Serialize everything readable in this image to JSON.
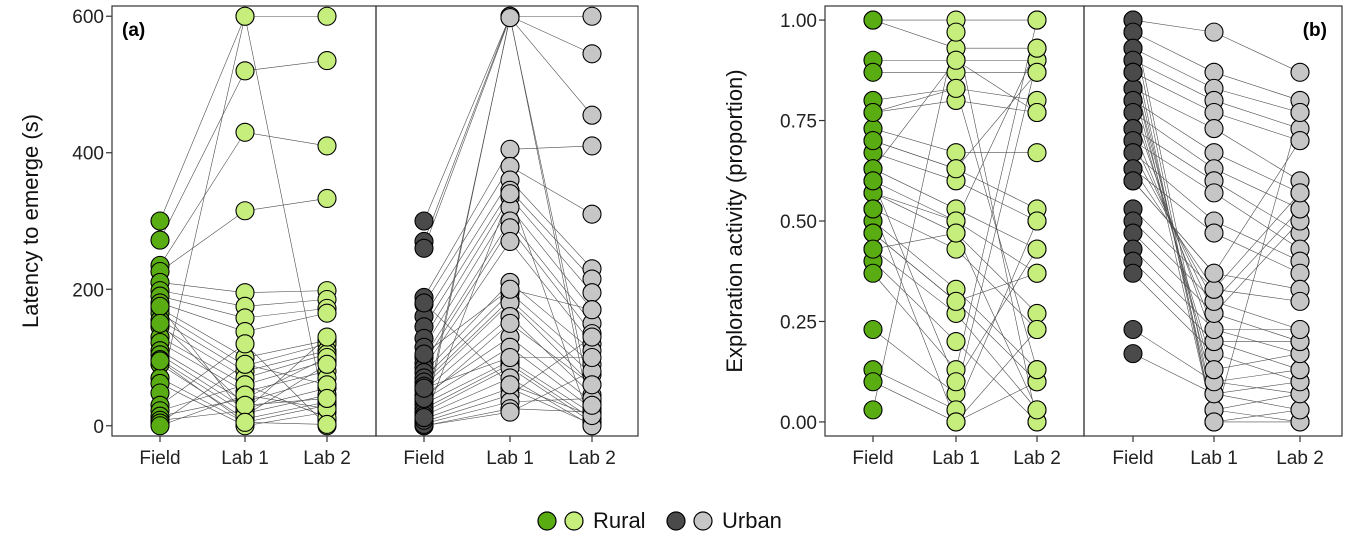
{
  "colors": {
    "rural_field": "#5aac13",
    "rural_lab": "#c6ee7c",
    "urban_field": "#4a4a4a",
    "urban_lab": "#c6c6c6",
    "marker_edge": "#000000",
    "connector_line": "#4d4d4d"
  },
  "legend": {
    "rural": "Rural",
    "urban": "Urban"
  },
  "chart_data": [
    {
      "type": "scatter",
      "panel_tag": "(a)",
      "ylabel": "Latency to emerge (s)",
      "ylim": [
        -15,
        615
      ],
      "y_ticks": [
        0,
        200,
        400,
        600
      ],
      "y_tick_labels": [
        "0",
        "200",
        "400",
        "600"
      ],
      "facets": [
        "Rural",
        "Urban"
      ],
      "categories": [
        "Field",
        "Lab 1",
        "Lab 2"
      ],
      "series": [
        {
          "name": "Rural",
          "field": [
            300,
            272,
            235,
            226,
            210,
            198,
            190,
            180,
            172,
            165,
            155,
            145,
            130,
            122,
            110,
            104,
            97,
            90,
            70,
            62,
            48,
            30,
            22,
            14,
            8,
            4,
            0,
            175,
            150,
            95
          ],
          "lab1": [
            600,
            520,
            430,
            315,
            195,
            175,
            158,
            138,
            100,
            88,
            80,
            70,
            60,
            50,
            35,
            25,
            18,
            10,
            5,
            0,
            600,
            120,
            60,
            40,
            22,
            90,
            45,
            15,
            30,
            5
          ],
          "lab2": [
            600,
            535,
            410,
            333,
            198,
            185,
            172,
            165,
            125,
            120,
            110,
            105,
            95,
            80,
            70,
            55,
            45,
            35,
            30,
            20,
            8,
            0,
            12,
            100,
            130,
            60,
            25,
            90,
            40,
            2
          ]
        },
        {
          "name": "Urban",
          "field": [
            300,
            270,
            260,
            188,
            178,
            160,
            145,
            128,
            115,
            100,
            92,
            85,
            78,
            70,
            64,
            58,
            52,
            45,
            38,
            32,
            25,
            20,
            15,
            10,
            6,
            3,
            0,
            0,
            2,
            8,
            40,
            55,
            180,
            105,
            12
          ],
          "lab1": [
            600,
            600,
            598,
            405,
            380,
            360,
            345,
            335,
            320,
            300,
            290,
            270,
            210,
            195,
            185,
            180,
            160,
            130,
            115,
            95,
            90,
            85,
            70,
            55,
            45,
            35,
            25,
            20,
            600,
            340,
            150,
            100,
            60,
            200,
            598
          ],
          "lab2": [
            600,
            545,
            455,
            410,
            310,
            230,
            215,
            195,
            170,
            150,
            135,
            120,
            110,
            90,
            75,
            60,
            45,
            35,
            25,
            18,
            10,
            5,
            0,
            2,
            130,
            40,
            20,
            80,
            5,
            0,
            60,
            100,
            15,
            170,
            30
          ]
        }
      ]
    },
    {
      "type": "scatter",
      "panel_tag": "(b)",
      "ylabel": "Exploration activity (proportion)",
      "ylim": [
        -0.035,
        1.035
      ],
      "y_ticks": [
        0,
        0.25,
        0.5,
        0.75,
        1
      ],
      "y_tick_labels": [
        "0.00",
        "0.25",
        "0.50",
        "0.75",
        "1.00"
      ],
      "facets": [
        "Rural",
        "Urban"
      ],
      "categories": [
        "Field",
        "Lab 1",
        "Lab 2"
      ],
      "series": [
        {
          "name": "Rural",
          "field": [
            1.0,
            1.0,
            0.9,
            0.87,
            0.8,
            0.77,
            0.73,
            0.7,
            0.67,
            0.63,
            0.6,
            0.57,
            0.53,
            0.5,
            0.47,
            0.43,
            0.4,
            0.37,
            0.23,
            0.13,
            0.1,
            0.03,
            0.63,
            0.57,
            0.47,
            0.53,
            0.7,
            0.77,
            0.43,
            0.6
          ],
          "lab1": [
            1.0,
            0.93,
            0.9,
            0.87,
            0.83,
            0.8,
            0.67,
            0.63,
            0.6,
            0.53,
            0.5,
            0.47,
            0.43,
            0.33,
            0.3,
            0.27,
            0.2,
            0.13,
            0.07,
            0.03,
            0.0,
            0.97,
            0.9,
            0.5,
            0.3,
            0.0,
            0.63,
            0.83,
            0.47,
            0.1
          ],
          "lab2": [
            1.0,
            0.93,
            0.9,
            0.87,
            0.8,
            0.77,
            0.67,
            0.53,
            0.5,
            0.43,
            0.37,
            0.27,
            0.23,
            0.13,
            0.1,
            0.03,
            0.0,
            1.0,
            0.9,
            0.5,
            0.1,
            0.0,
            0.77,
            0.93,
            0.37,
            0.23,
            0.87,
            0.13,
            0.03,
            0.43
          ]
        },
        {
          "name": "Urban",
          "field": [
            1.0,
            0.97,
            0.93,
            0.9,
            0.87,
            0.83,
            0.8,
            0.77,
            0.73,
            0.7,
            0.67,
            0.63,
            0.6,
            0.53,
            0.5,
            0.47,
            0.43,
            0.4,
            0.37,
            0.23,
            0.17,
            1.0,
            0.97,
            0.93,
            0.9,
            0.87,
            0.83,
            0.8,
            0.77,
            0.73,
            0.7,
            0.67,
            0.63,
            0.6,
            0.87
          ],
          "lab1": [
            0.97,
            0.87,
            0.83,
            0.8,
            0.77,
            0.73,
            0.67,
            0.63,
            0.6,
            0.57,
            0.5,
            0.47,
            0.37,
            0.33,
            0.3,
            0.27,
            0.23,
            0.2,
            0.17,
            0.1,
            0.07,
            0.03,
            0.0,
            0.0,
            0.03,
            0.07,
            0.1,
            0.13,
            0.2,
            0.23,
            0.27,
            0.3,
            0.33,
            0.37,
            0.0
          ],
          "lab2": [
            0.87,
            0.8,
            0.77,
            0.73,
            0.7,
            0.6,
            0.57,
            0.53,
            0.47,
            0.43,
            0.4,
            0.37,
            0.33,
            0.3,
            0.23,
            0.2,
            0.17,
            0.13,
            0.1,
            0.07,
            0.03,
            0.0,
            0.0,
            0.03,
            0.07,
            0.1,
            0.13,
            0.17,
            0.2,
            0.23,
            0.5,
            0.53,
            0.57,
            0.7,
            0.77
          ]
        }
      ]
    }
  ]
}
